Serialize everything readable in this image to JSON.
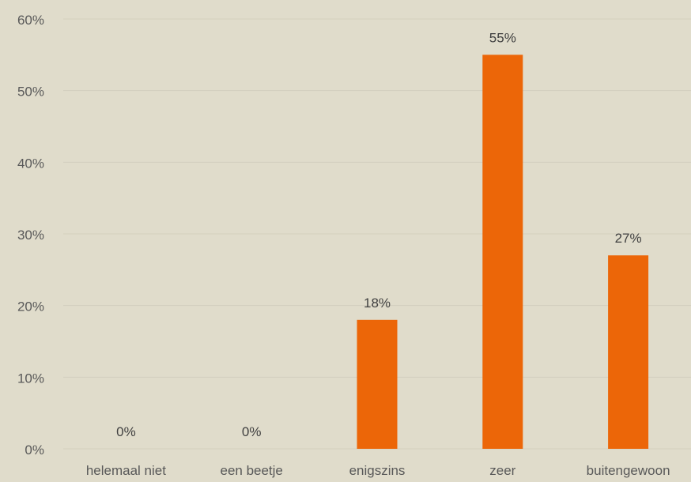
{
  "chart_data": {
    "type": "bar",
    "title": "",
    "xlabel": "",
    "ylabel": "",
    "categories": [
      "helemaal niet",
      "een beetje",
      "enigszins",
      "zeer",
      "buitengewoon"
    ],
    "values": [
      0,
      0,
      18,
      55,
      27
    ],
    "data_labels": [
      "0%",
      "0%",
      "18%",
      "55%",
      "27%"
    ],
    "ylim": [
      0,
      60
    ],
    "yticks": [
      0,
      10,
      20,
      30,
      40,
      50,
      60
    ],
    "ytick_labels": [
      "0%",
      "10%",
      "20%",
      "30%",
      "40%",
      "50%",
      "60%"
    ],
    "grid": true,
    "legend": "none",
    "colors": {
      "bar": "#ec6608",
      "background": "#e0dccb",
      "grid": "#d3cfbe",
      "text": "#595959",
      "label": "#404040"
    }
  }
}
